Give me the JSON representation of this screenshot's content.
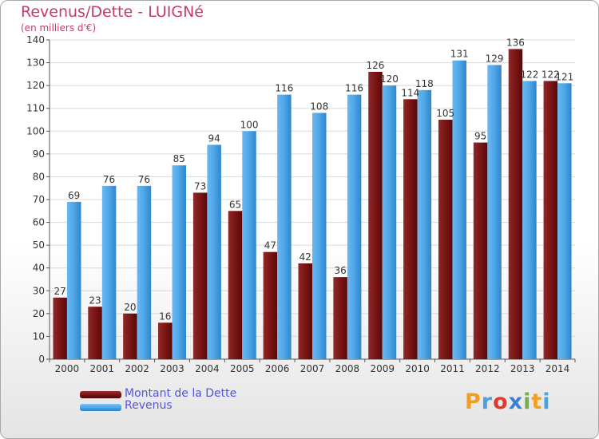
{
  "header": {
    "title": "Revenus/Dette - LUIGNé",
    "subtitle": "(en milliers d'€)"
  },
  "legend": {
    "debt_label": "Montant de la Dette",
    "revenue_label": "Revenus"
  },
  "logo": {
    "letters": [
      "P",
      "r",
      "o",
      "x",
      "i",
      "t",
      "i"
    ],
    "colors": [
      "#f0a020",
      "#4aa0e0",
      "#e03a30",
      "#3d7fd0",
      "#6ab04c",
      "#f0a020",
      "#4aa0e0"
    ]
  },
  "colors": {
    "debt": "#7a1515",
    "revenue": "#4da6e8",
    "title": "#c43a6e"
  },
  "chart_data": {
    "type": "bar",
    "categories": [
      "2000",
      "2001",
      "2002",
      "2003",
      "2004",
      "2005",
      "2006",
      "2007",
      "2008",
      "2009",
      "2010",
      "2011",
      "2012",
      "2013",
      "2014"
    ],
    "series": [
      {
        "name": "Montant de la Dette",
        "values": [
          27,
          23,
          20,
          16,
          73,
          65,
          47,
          42,
          36,
          126,
          114,
          105,
          95,
          136,
          122
        ]
      },
      {
        "name": "Revenus",
        "values": [
          69,
          76,
          76,
          85,
          94,
          100,
          116,
          108,
          116,
          120,
          118,
          131,
          129,
          122,
          121
        ]
      }
    ],
    "yticks": [
      "0",
      "10",
      "20",
      "30",
      "40",
      "50",
      "60",
      "70",
      "80",
      "90",
      "100",
      "110",
      "120",
      "130",
      "140"
    ],
    "ylim": [
      0,
      140
    ],
    "grid": true
  }
}
